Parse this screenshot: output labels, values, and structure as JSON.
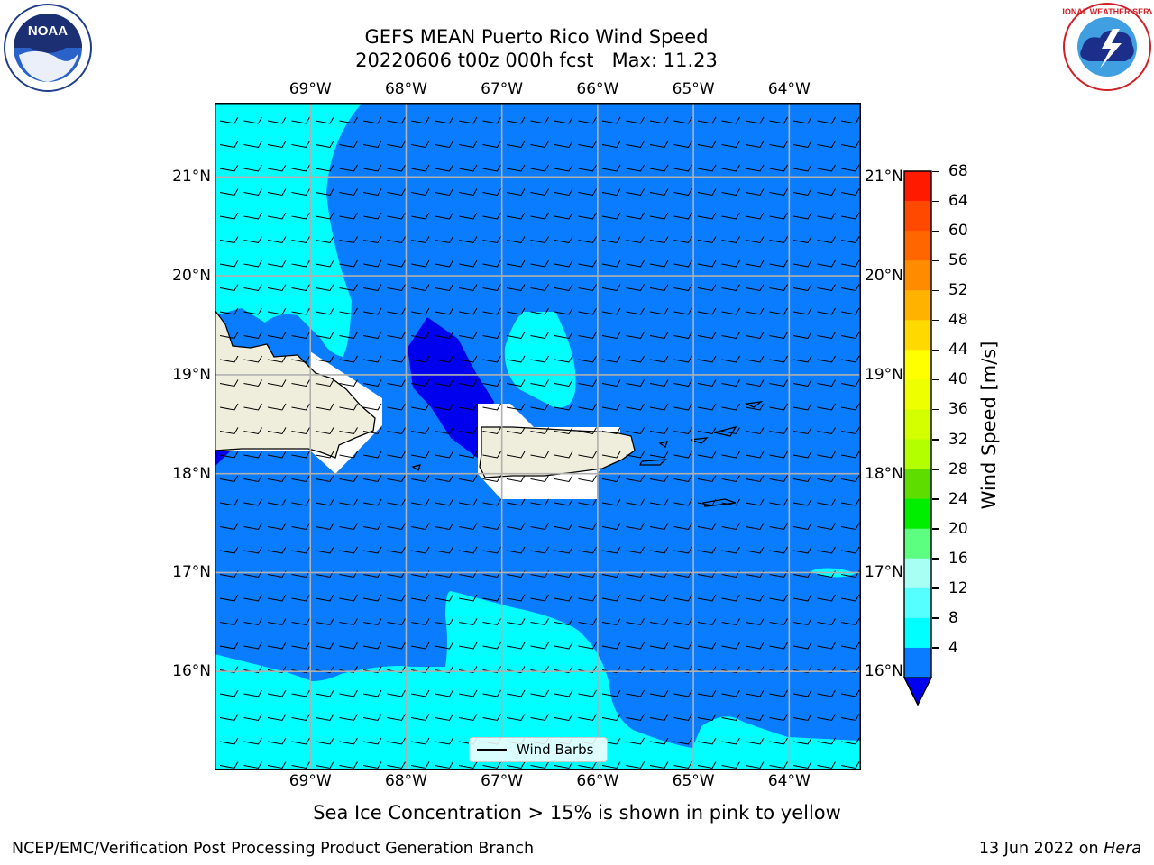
{
  "title": {
    "line1": "GEFS MEAN Puerto Rico Wind Speed",
    "line2": "20220606 t00z 000h fcst   Max: 11.23"
  },
  "map": {
    "lon_labels": [
      "69°W",
      "68°W",
      "67°W",
      "66°W",
      "65°W",
      "64°W"
    ],
    "lat_labels": [
      "21°N",
      "20°N",
      "19°N",
      "18°N",
      "17°N",
      "16°N"
    ],
    "lon_values": [
      -69,
      -68,
      -67,
      -66,
      -65,
      -64
    ],
    "lat_values": [
      21,
      20,
      19,
      18,
      17,
      16
    ],
    "extent": {
      "lon_min": -70.0,
      "lon_max": -63.25,
      "lat_min": 15.0,
      "lat_max": 21.75
    },
    "gridlines": true,
    "legend": {
      "label": "Wind Barbs",
      "placement": "bottom-center"
    },
    "fill_colors": {
      "4-8": "#0a7cff",
      "8-12": "#00ffff",
      "below-4": "#0000ee",
      "land": "#efeedc",
      "masked": "#ffffff"
    }
  },
  "colorbar": {
    "label": "Wind Speed [m/s]",
    "ticks": [
      "68",
      "64",
      "60",
      "56",
      "52",
      "48",
      "44",
      "40",
      "36",
      "32",
      "28",
      "24",
      "20",
      "16",
      "12",
      "8",
      "4"
    ],
    "colors_top_to_bottom": [
      "#ff1a00",
      "#ff4800",
      "#ff6600",
      "#ff8c00",
      "#ffb300",
      "#ffd900",
      "#ffff00",
      "#eeff00",
      "#d4ff00",
      "#b3ff00",
      "#5edd00",
      "#00ee00",
      "#5cff80",
      "#a8fff4",
      "#55ffff",
      "#00ffff",
      "#0a7cff"
    ],
    "under_color": "#0000ee"
  },
  "note": "Sea Ice Concentration > 15% is shown in pink to yellow",
  "footer": {
    "left": "NCEP/EMC/Verification Post Processing Product Generation Branch",
    "right_date": "13 Jun 2022 on",
    "right_machine": "Hera"
  },
  "logos": {
    "left": {
      "text": "NOAA",
      "icon": "noaa-logo"
    },
    "right": {
      "text": "NATIONAL WEATHER SERVICE",
      "icon": "nws-logo"
    }
  }
}
